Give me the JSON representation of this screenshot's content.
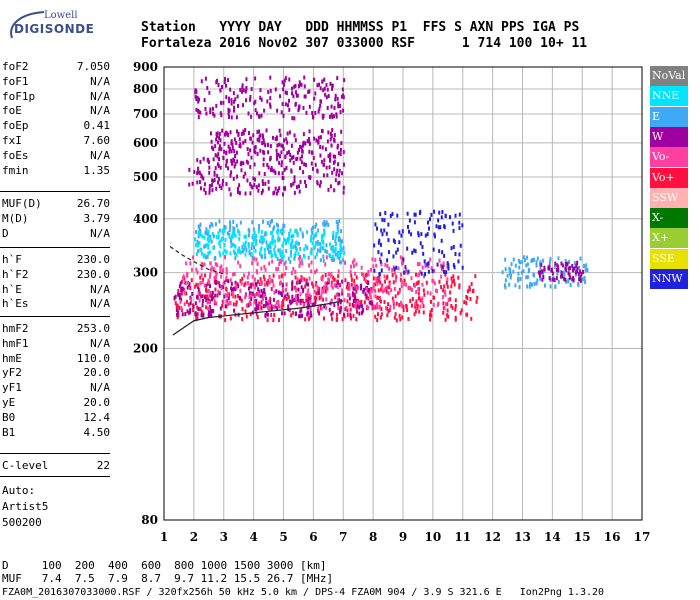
{
  "header": {
    "line1": "Station   YYYY DAY   DDD HHMMSS P1  FFS S AXN PPS IGA PS",
    "line2": "Fortaleza 2016 Nov02 307 033000 RSF      1 714 100 10+ 11"
  },
  "logo": {
    "line1": "Lowell",
    "line2": "DIGISONDE"
  },
  "params_top": [
    {
      "name": "foF2",
      "value": "7.050"
    },
    {
      "name": "foF1",
      "value": "N/A"
    },
    {
      "name": "foF1p",
      "value": "N/A"
    },
    {
      "name": "foE",
      "value": "N/A"
    },
    {
      "name": "foEp",
      "value": "0.41"
    },
    {
      "name": "fxI",
      "value": "7.60"
    },
    {
      "name": "foEs",
      "value": "N/A"
    },
    {
      "name": "fmin",
      "value": "1.35"
    }
  ],
  "params_muf": [
    {
      "name": "MUF(D)",
      "value": "26.70"
    },
    {
      "name": "M(D)",
      "value": "3.79"
    },
    {
      "name": "D",
      "value": "N/A"
    }
  ],
  "params_h": [
    {
      "name": "h`F",
      "value": "230.0"
    },
    {
      "name": "h`F2",
      "value": "230.0"
    },
    {
      "name": "h`E",
      "value": "N/A"
    },
    {
      "name": "h`Es",
      "value": "N/A"
    }
  ],
  "params_hm": [
    {
      "name": "hmF2",
      "value": "253.0"
    },
    {
      "name": "hmF1",
      "value": "N/A"
    },
    {
      "name": "hmE",
      "value": "110.0"
    },
    {
      "name": "yF2",
      "value": "20.0"
    },
    {
      "name": "yF1",
      "value": "N/A"
    },
    {
      "name": "yE",
      "value": "20.0"
    },
    {
      "name": "B0",
      "value": "12.4"
    },
    {
      "name": "B1",
      "value": "4.50"
    }
  ],
  "params_c": [
    {
      "name": "C-level",
      "value": "22"
    }
  ],
  "auto": {
    "line1": "Auto:",
    "line2": "Artist5",
    "line3": "500200"
  },
  "legend": [
    {
      "label": "NoVal",
      "color": "#808080"
    },
    {
      "label": "NNE",
      "color": "#00e5ff"
    },
    {
      "label": "E",
      "color": "#3fa9f5"
    },
    {
      "label": "W",
      "color": "#a000a0"
    },
    {
      "label": "Vo-",
      "color": "#ff40a0"
    },
    {
      "label": "Vo+",
      "color": "#ff1040"
    },
    {
      "label": "SSW",
      "color": "#ffb0b0"
    },
    {
      "label": "X-",
      "color": "#007800"
    },
    {
      "label": "X+",
      "color": "#9acd32"
    },
    {
      "label": "SSE",
      "color": "#e8e000"
    },
    {
      "label": "NNW",
      "color": "#2020e0"
    }
  ],
  "bottom": {
    "d_line": "D     100  200  400  600  800 1000 1500 3000 [km]",
    "muf_line": "MUF   7.4  7.5  7.9  8.7  9.7 11.2 15.5 26.7 [MHz]",
    "footer": "FZA0M_2016307033000.RSF / 320fx256h 50 kHz 5.0 km / DPS-4 FZA0M 904 / 3.9 S 321.6 E   Ion2Png 1.3.20"
  },
  "chart_data": {
    "type": "scatter",
    "xlim": [
      1,
      17
    ],
    "ylim": [
      80,
      900
    ],
    "y_scale": "log",
    "x_ticks": [
      "1",
      "2",
      "3",
      "4",
      "5",
      "6",
      "7",
      "8",
      "9",
      "10",
      "11",
      "12",
      "13",
      "14",
      "15",
      "16",
      "17"
    ],
    "y_ticks": [
      "80",
      "200",
      "300",
      "400",
      "500",
      "600",
      "700",
      "800",
      "900"
    ],
    "traces": [
      {
        "name": "NoVal",
        "x": [
          1.3,
          2.0,
          2.5,
          3.0,
          3.5,
          4.0,
          4.5,
          5.0,
          5.5,
          6.0,
          6.5,
          7.0
        ],
        "y": [
          215,
          232,
          236,
          238,
          240,
          242,
          244,
          246,
          248,
          251,
          254,
          258
        ]
      },
      {
        "name": "NoVal",
        "x": [
          1.2,
          1.6,
          2.0,
          2.5,
          3.0
        ],
        "y": [
          345,
          330,
          318,
          305,
          298
        ]
      }
    ],
    "echo_regions": [
      {
        "color_key": "Vo+",
        "x_range": [
          1.3,
          11.5
        ],
        "y_range": [
          235,
          300
        ]
      },
      {
        "color_key": "W",
        "x_range": [
          1.3,
          8.0
        ],
        "y_range": [
          240,
          290
        ]
      },
      {
        "color_key": "Vo-",
        "x_range": [
          1.5,
          10.5
        ],
        "y_range": [
          250,
          330
        ]
      },
      {
        "color_key": "NNW",
        "x_range": [
          8.0,
          11.0
        ],
        "y_range": [
          300,
          420
        ]
      },
      {
        "color_key": "E",
        "x_range": [
          2.0,
          7.0
        ],
        "y_range": [
          320,
          400
        ]
      },
      {
        "color_key": "NNE",
        "x_range": [
          2.0,
          7.0
        ],
        "y_range": [
          330,
          380
        ]
      },
      {
        "color_key": "W",
        "x_range": [
          1.8,
          7.0
        ],
        "y_range": [
          460,
          560
        ]
      },
      {
        "color_key": "W",
        "x_range": [
          2.5,
          7.0
        ],
        "y_range": [
          560,
          650
        ]
      },
      {
        "color_key": "W",
        "x_range": [
          2.0,
          7.0
        ],
        "y_range": [
          690,
          860
        ]
      },
      {
        "color_key": "E",
        "x_range": [
          12.3,
          15.2
        ],
        "y_range": [
          280,
          330
        ]
      },
      {
        "color_key": "W",
        "x_range": [
          13.5,
          15.0
        ],
        "y_range": [
          290,
          320
        ]
      }
    ]
  }
}
